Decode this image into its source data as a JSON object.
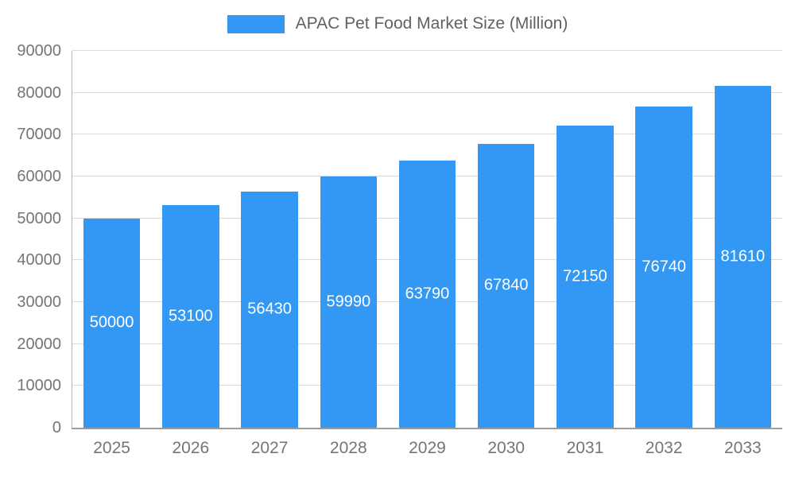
{
  "legend": {
    "label": "APAC Pet Food Market Size (Million)",
    "swatch_color": "#3398f4"
  },
  "chart_data": {
    "type": "bar",
    "title": "APAC Pet Food Market Size (Million)",
    "series_name": "APAC Pet Food Market Size (Million)",
    "categories": [
      "2025",
      "2026",
      "2027",
      "2028",
      "2029",
      "2030",
      "2031",
      "2032",
      "2033"
    ],
    "values": [
      50000,
      53100,
      56430,
      59990,
      63790,
      67840,
      72150,
      76740,
      81610
    ],
    "xlabel": "",
    "ylabel": "",
    "ylim": [
      0,
      90000
    ],
    "ytick_step": 10000,
    "ytick_labels": [
      "0",
      "10000",
      "20000",
      "30000",
      "40000",
      "50000",
      "60000",
      "70000",
      "80000",
      "90000"
    ],
    "grid": true,
    "legend_position": "top",
    "bar_color": "#3398f4",
    "value_label_color": "#ffffff",
    "axis_text_color": "#757575",
    "gridline_color": "#d9d9d9"
  }
}
